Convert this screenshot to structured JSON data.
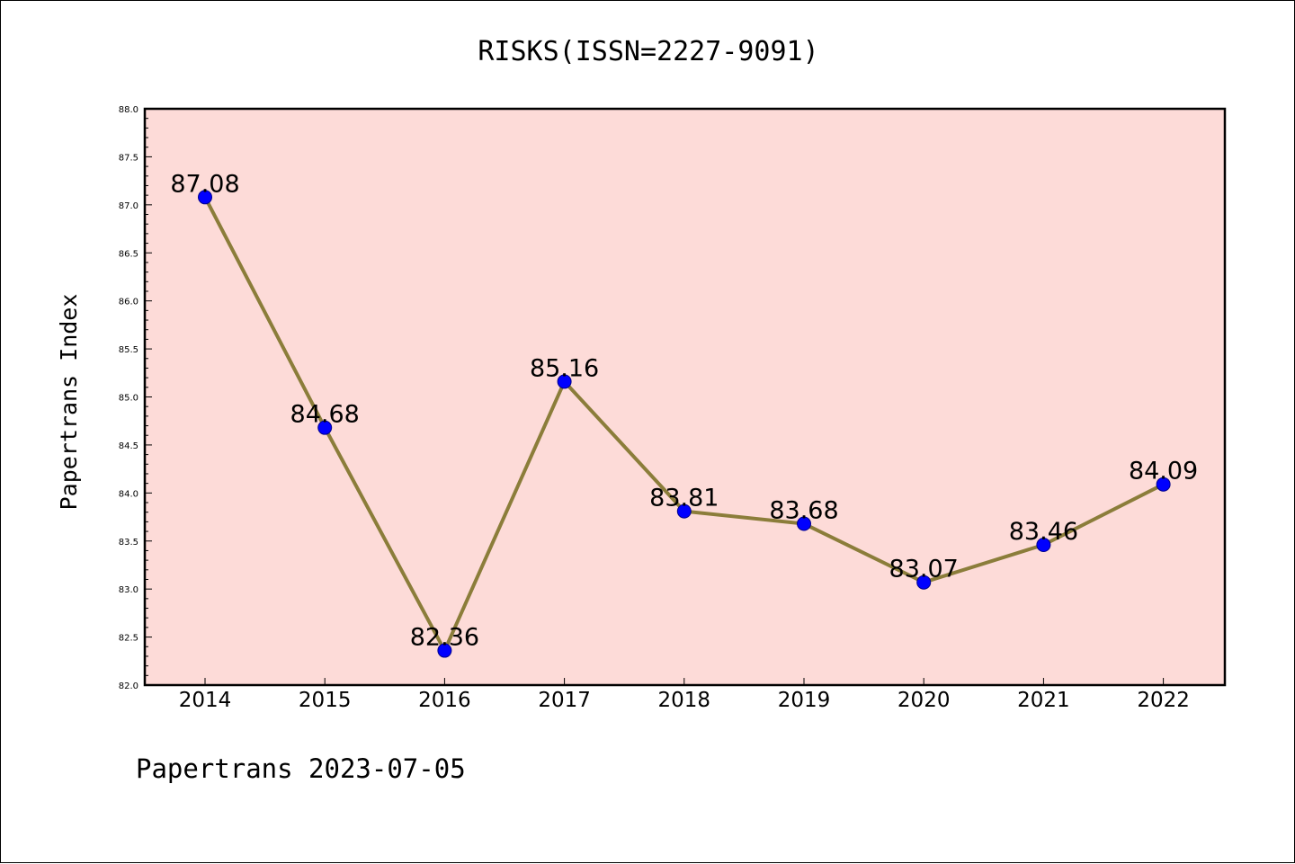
{
  "chart_data": {
    "type": "line",
    "title": "RISKS(ISSN=2227-9091)",
    "ylabel": "Papertrans Index",
    "xlabel": "",
    "categories": [
      "2014",
      "2015",
      "2016",
      "2017",
      "2018",
      "2019",
      "2020",
      "2021",
      "2022"
    ],
    "values": [
      87.08,
      84.68,
      82.36,
      85.16,
      83.81,
      83.68,
      83.07,
      83.46,
      84.09
    ],
    "data_labels": [
      "87.08",
      "84.68",
      "82.36",
      "85.16",
      "83.81",
      "83.68",
      "83.07",
      "83.46",
      "84.09"
    ],
    "ylim": [
      82.0,
      88.0
    ],
    "yticks": [
      "82.0",
      "82.5",
      "83.0",
      "83.5",
      "84.0",
      "84.5",
      "85.0",
      "85.5",
      "86.0",
      "86.5",
      "87.0",
      "87.5",
      "88.0"
    ],
    "grid": false,
    "colors": {
      "plot_background": "#fddbd8",
      "line": "#8b7d3a",
      "marker": "#0000ff",
      "marker_edge": "#00008b"
    }
  },
  "footer": "Papertrans 2023-07-05"
}
